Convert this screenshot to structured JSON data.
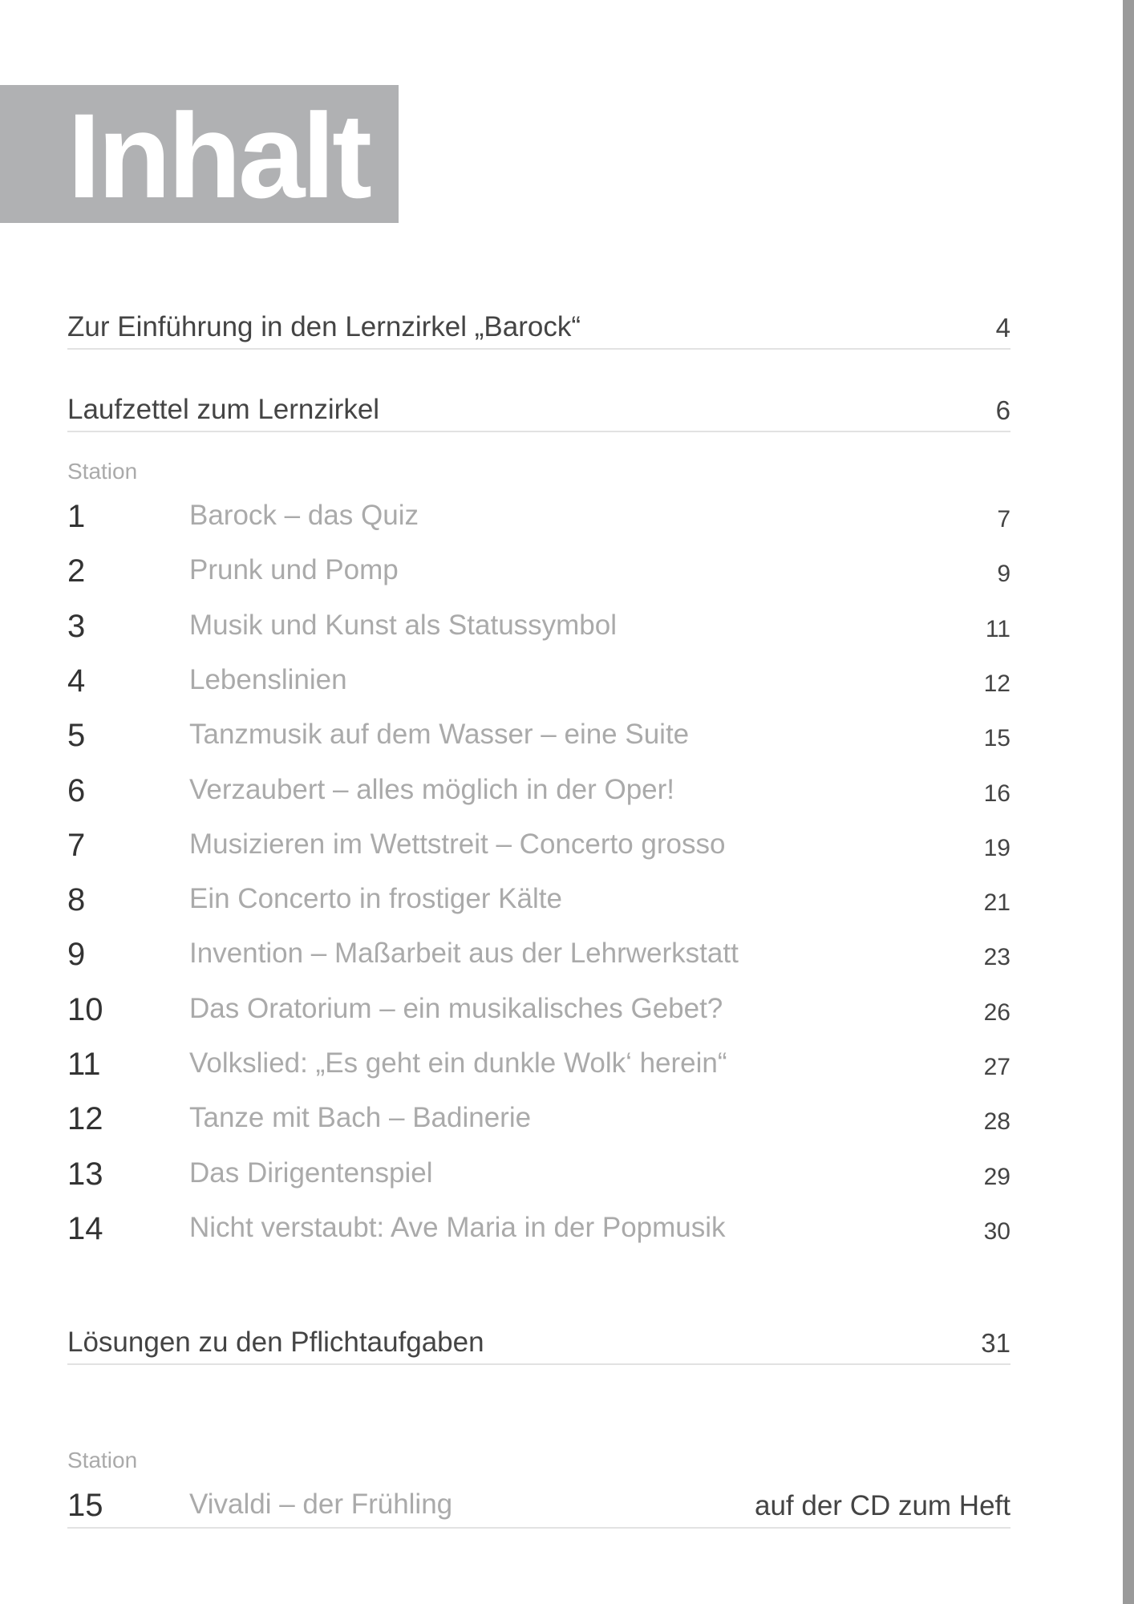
{
  "title": "Inhalt",
  "entries": [
    {
      "label": "Zur Einführung in den Lernzirkel „Barock“",
      "page": "4"
    },
    {
      "label": "Laufzettel zum Lernzirkel",
      "page": "6"
    }
  ],
  "station_label": "Station",
  "stations": [
    {
      "num": "1",
      "title": "Barock – das Quiz",
      "page": "7"
    },
    {
      "num": "2",
      "title": "Prunk und Pomp",
      "page": "9"
    },
    {
      "num": "3",
      "title": "Musik und Kunst als Statussymbol",
      "page": "11"
    },
    {
      "num": "4",
      "title": "Lebenslinien",
      "page": "12"
    },
    {
      "num": "5",
      "title": "Tanzmusik auf dem Wasser – eine Suite",
      "page": "15"
    },
    {
      "num": "6",
      "title": "Verzaubert – alles möglich in der Oper!",
      "page": "16"
    },
    {
      "num": "7",
      "title": "Musizieren im Wettstreit – Concerto grosso",
      "page": "19"
    },
    {
      "num": "8",
      "title": "Ein Concerto in frostiger Kälte",
      "page": "21"
    },
    {
      "num": "9",
      "title": "Invention – Maßarbeit aus der Lehrwerkstatt",
      "page": "23"
    },
    {
      "num": "10",
      "title": "Das Oratorium – ein musikalisches Gebet?",
      "page": "26"
    },
    {
      "num": "11",
      "title": "Volkslied: „Es geht ein dunkle Wolk‘ herein“",
      "page": "27"
    },
    {
      "num": "12",
      "title": "Tanze mit Bach – Badinerie",
      "page": "28"
    },
    {
      "num": "13",
      "title": "Das Dirigentenspiel",
      "page": "29"
    },
    {
      "num": "14",
      "title": "Nicht verstaubt: Ave Maria in der Popmusik",
      "page": "30"
    }
  ],
  "solutions": {
    "label": "Lösungen zu den Pflichtaufgaben",
    "page": "31"
  },
  "station_label_2": "Station",
  "extra_station": {
    "num": "15",
    "title": "Vivaldi – der Frühling",
    "page": "auf der CD zum Heft"
  }
}
